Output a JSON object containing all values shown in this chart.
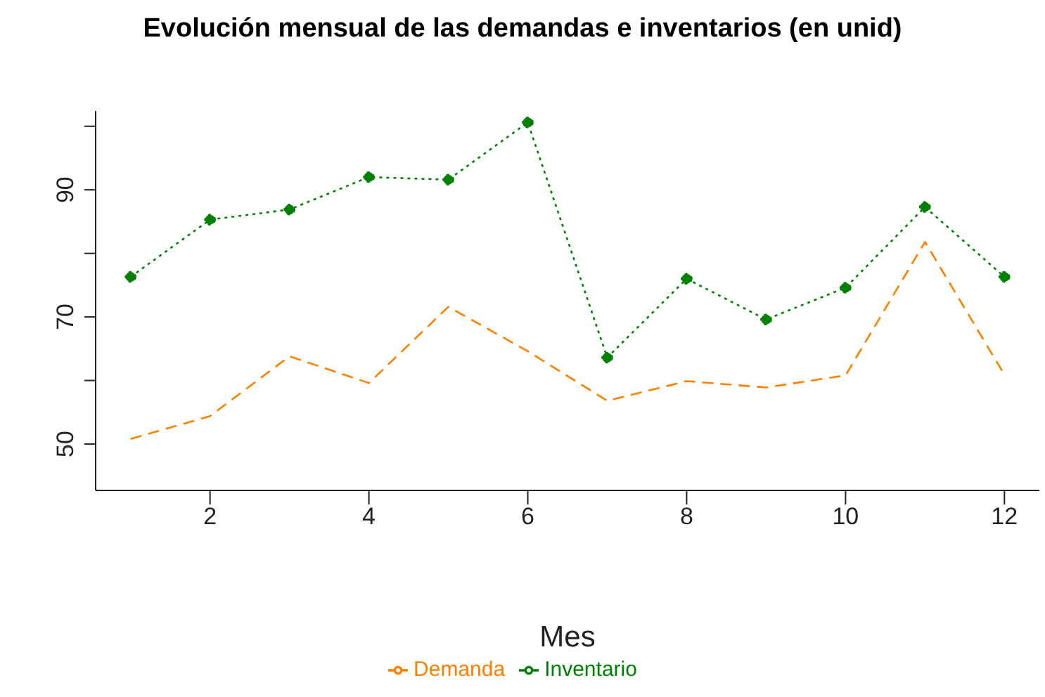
{
  "chart_data": {
    "type": "line",
    "title": "Evolución mensual de las demandas e inventarios (en unid)",
    "xlabel": "Mes",
    "x": [
      1,
      2,
      3,
      4,
      5,
      6,
      7,
      8,
      9,
      10,
      11,
      12
    ],
    "series": [
      {
        "name": "Demanda",
        "color": "#ff7f00",
        "line_style": "dashed",
        "marker": "none",
        "values": [
          50.8,
          54.4,
          63.8,
          59.6,
          71.6,
          64.6,
          56.8,
          59.9,
          58.9,
          60.8,
          81.8,
          60.9
        ]
      },
      {
        "name": "Inventario",
        "color": "#008000",
        "line_style": "dotted",
        "marker": "circle",
        "values": [
          76.3,
          85.3,
          86.9,
          92.0,
          91.6,
          100.6,
          63.6,
          76.0,
          69.6,
          74.6,
          87.3,
          76.3
        ]
      }
    ],
    "xlim": [
      0.56,
      12.44
    ],
    "xticks": [
      2,
      4,
      6,
      8,
      10,
      12
    ],
    "ylim": [
      42.7,
      102.4
    ],
    "yticks": [
      50,
      {
        "value": 60,
        "label": null
      },
      70,
      {
        "value": 80,
        "label": null
      },
      90,
      {
        "value": 100,
        "label": null
      }
    ],
    "grid": false,
    "legend": "bottom"
  }
}
